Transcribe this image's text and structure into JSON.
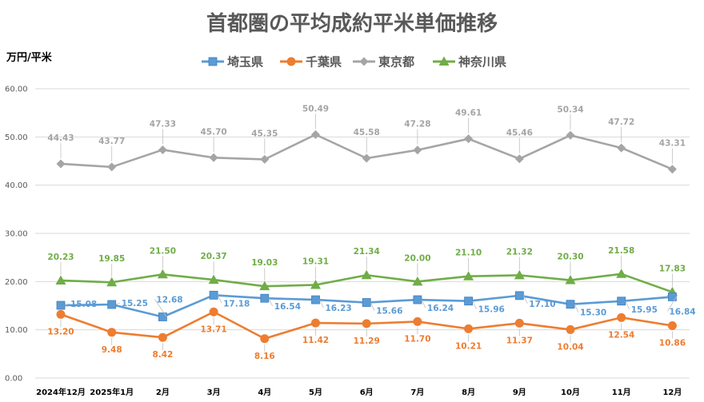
{
  "chart_data": {
    "type": "line",
    "title": "首都圏の平均成約平米単価推移",
    "ylabel": "万円/平米",
    "xlabel": "",
    "ylim": [
      0,
      60
    ],
    "yticks": [
      "0.00",
      "10.00",
      "20.00",
      "30.00",
      "40.00",
      "50.00",
      "60.00"
    ],
    "grid": true,
    "legend_position": "top-center",
    "categories": [
      "2024年12月",
      "2025年1月",
      "2月",
      "3月",
      "4月",
      "5月",
      "6月",
      "7月",
      "8月",
      "9月",
      "10月",
      "11月",
      "12月"
    ],
    "series": [
      {
        "name": "埼玉県",
        "color": "#5b9bd5",
        "marker": "square",
        "values": [
          15.08,
          15.25,
          12.68,
          17.18,
          16.54,
          16.23,
          15.66,
          16.24,
          15.96,
          17.1,
          15.3,
          15.95,
          16.84
        ],
        "labels": [
          "15.08",
          "15.25",
          "12.68",
          "17.18",
          "16.54",
          "16.23",
          "15.66",
          "16.24",
          "15.96",
          "17.10",
          "15.30",
          "15.95",
          "16.84"
        ]
      },
      {
        "name": "千葉県",
        "color": "#ed7d31",
        "marker": "circle",
        "values": [
          13.2,
          9.48,
          8.42,
          13.71,
          8.16,
          11.42,
          11.29,
          11.7,
          10.21,
          11.37,
          10.04,
          12.54,
          10.86
        ],
        "labels": [
          "13.20",
          "9.48",
          "8.42",
          "13.71",
          "8.16",
          "11.42",
          "11.29",
          "11.70",
          "10.21",
          "11.37",
          "10.04",
          "12.54",
          "10.86"
        ]
      },
      {
        "name": "東京都",
        "color": "#a5a5a5",
        "marker": "diamond",
        "values": [
          44.43,
          43.77,
          47.33,
          45.7,
          45.35,
          50.49,
          45.58,
          47.28,
          49.61,
          45.46,
          50.34,
          47.72,
          43.31
        ],
        "labels": [
          "44.43",
          "43.77",
          "47.33",
          "45.70",
          "45.35",
          "50.49",
          "45.58",
          "47.28",
          "49.61",
          "45.46",
          "50.34",
          "47.72",
          "43.31"
        ]
      },
      {
        "name": "神奈川県",
        "color": "#70ad47",
        "marker": "triangle",
        "values": [
          20.23,
          19.85,
          21.5,
          20.37,
          19.03,
          19.31,
          21.34,
          20.0,
          21.1,
          21.32,
          20.3,
          21.58,
          17.83
        ],
        "labels": [
          "20.23",
          "19.85",
          "21.50",
          "20.37",
          "19.03",
          "19.31",
          "21.34",
          "20.00",
          "21.10",
          "21.32",
          "20.30",
          "21.58",
          "17.83"
        ]
      }
    ]
  }
}
